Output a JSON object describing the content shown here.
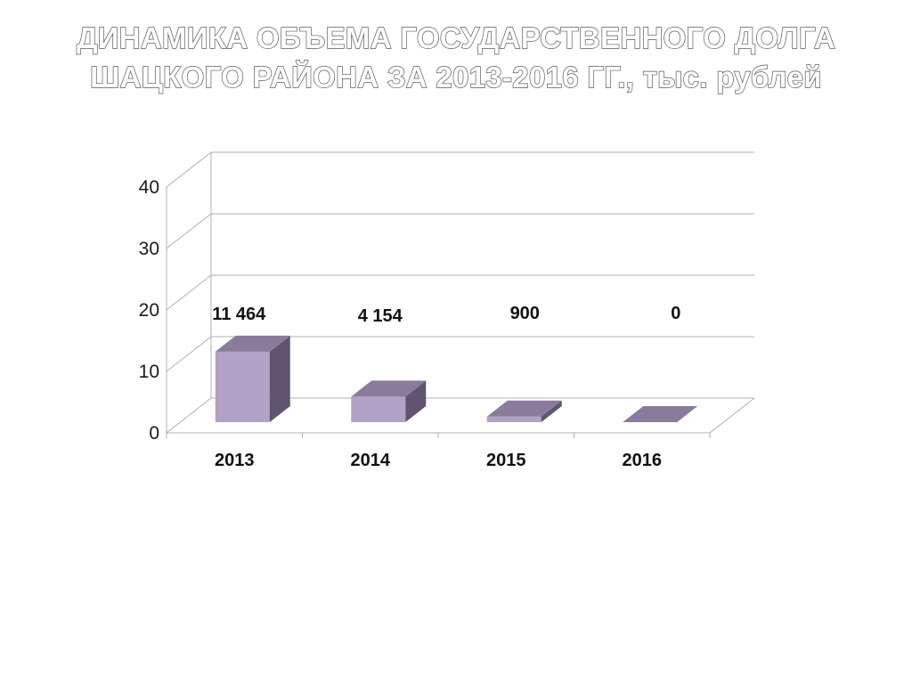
{
  "title": {
    "line1": "ДИНАМИКА ОБЪЕМА ГОСУДАРСТВЕННОГО ДОЛГА",
    "line2": "ШАЦКОГО РАЙОНА ЗА 2013-2016 ГГ., тыс. рублей"
  },
  "chart_data": {
    "type": "bar",
    "style": "3d-column",
    "categories": [
      "2013",
      "2014",
      "2015",
      "2016"
    ],
    "values": [
      11.464,
      4.154,
      0.9,
      0
    ],
    "data_labels": [
      "11 464",
      "4 154",
      "900",
      "0"
    ],
    "ylim": [
      0,
      40
    ],
    "yticks": [
      "0",
      "10",
      "20",
      "30",
      "40"
    ],
    "grid": true,
    "legend": "none",
    "colors": {
      "bar_front": "#b2a2c8",
      "bar_top": "#8a7a9c",
      "bar_side": "#605470",
      "grid": "#b0b0b0"
    }
  }
}
